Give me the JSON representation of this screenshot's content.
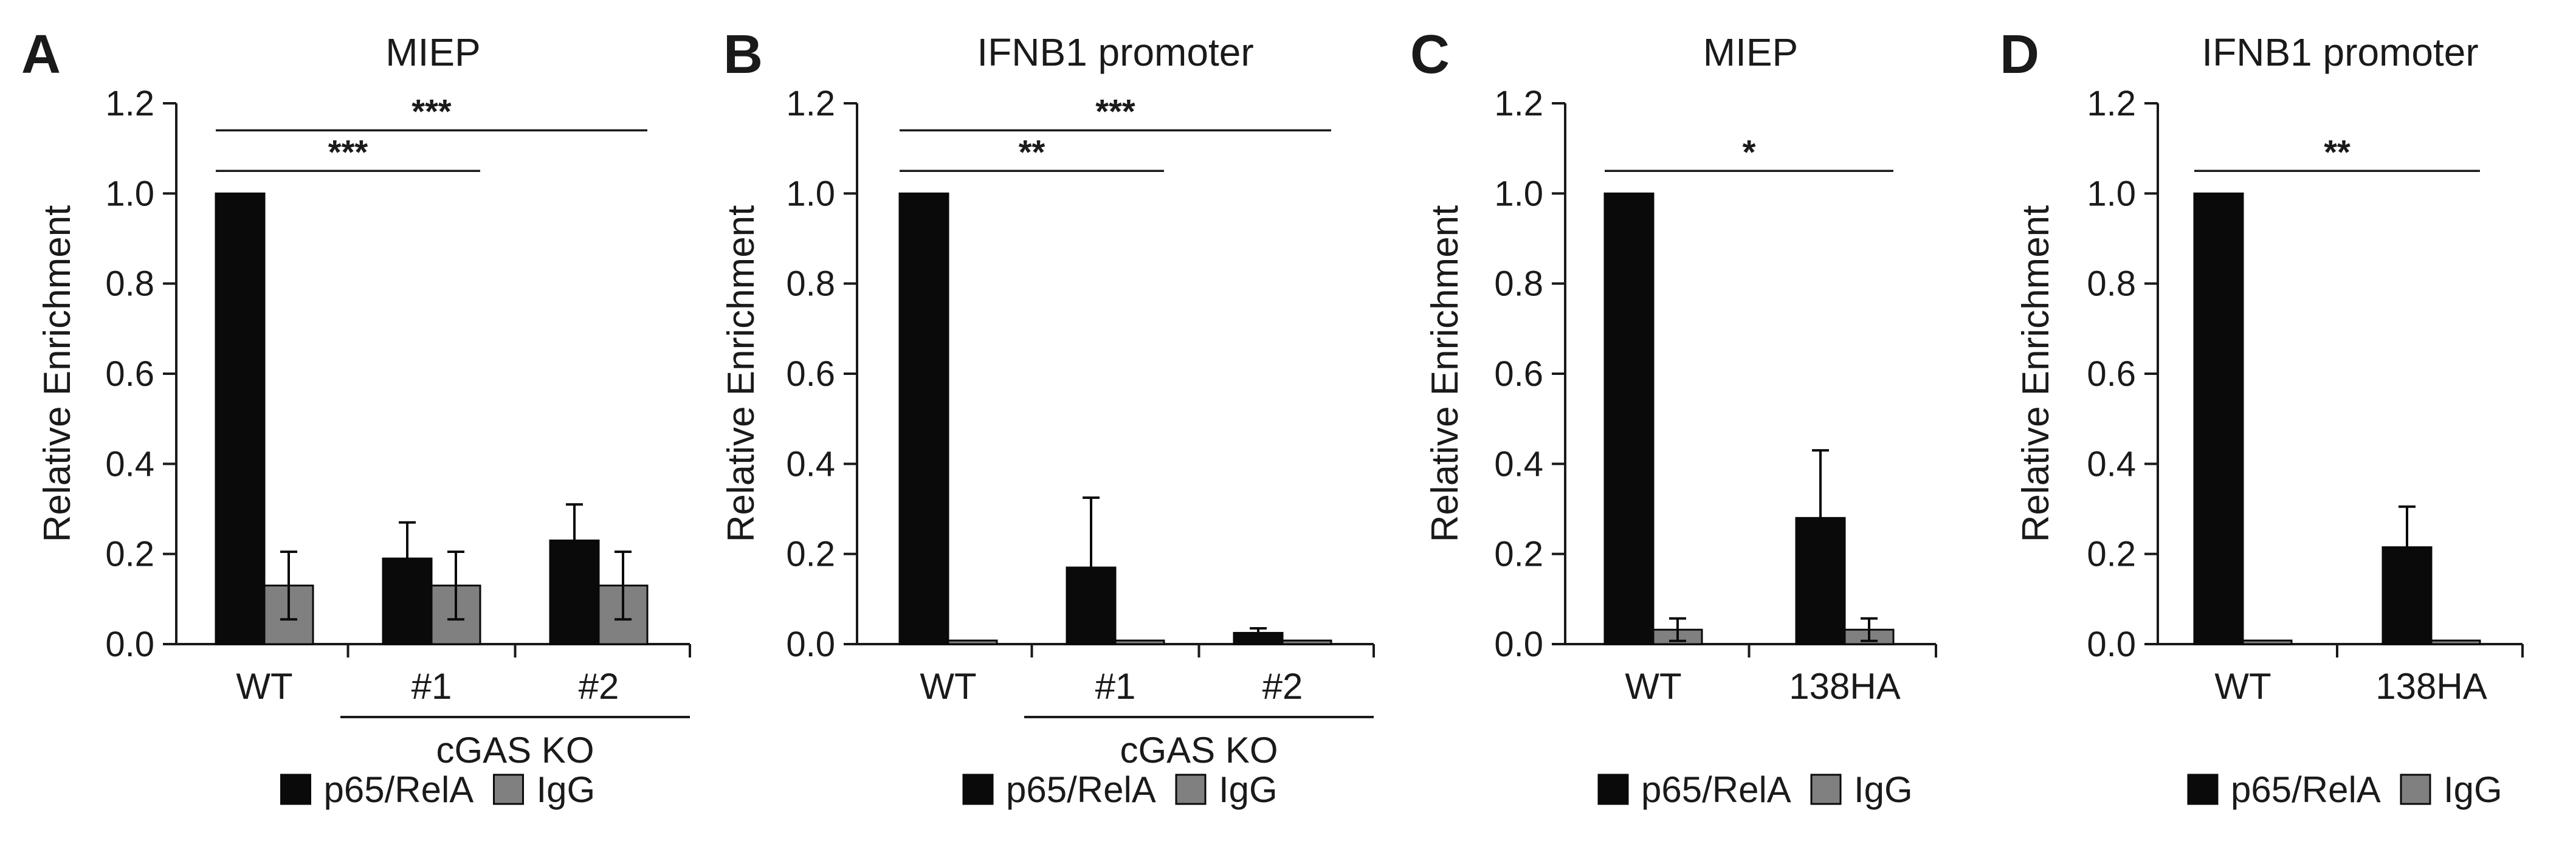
{
  "legend": {
    "series1": "p65/RelA",
    "series2": "IgG"
  },
  "colors": {
    "p65": "#0a0a0a",
    "igg": "#808080",
    "axis": "#1a1a1a"
  },
  "chart_data": [
    {
      "letter": "A",
      "type": "bar",
      "title": "MIEP",
      "categories": [
        "WT",
        "#1",
        "#2"
      ],
      "group_label": "cGAS KO",
      "ylabel": "Relative Enrichment",
      "ylim": [
        0,
        1.2
      ],
      "yticks": [
        "0.0",
        "0.2",
        "0.4",
        "0.6",
        "0.8",
        "1.0",
        "1.2"
      ],
      "series": [
        {
          "name": "p65/RelA",
          "values": [
            1.0,
            0.19,
            0.23
          ],
          "errors": [
            0,
            0.08,
            0.08
          ]
        },
        {
          "name": "IgG",
          "values": [
            0.13,
            0.13,
            0.13
          ],
          "errors": [
            0.075,
            0.075,
            0.075
          ]
        }
      ],
      "significance": [
        {
          "from": 0,
          "to": 1,
          "y": 1.05,
          "label": "***"
        },
        {
          "from": 0,
          "to": 2,
          "y": 1.14,
          "label": "***"
        }
      ]
    },
    {
      "letter": "B",
      "type": "bar",
      "title": "IFNB1 promoter",
      "categories": [
        "WT",
        "#1",
        "#2"
      ],
      "group_label": "cGAS KO",
      "ylabel": "Relative Enrichment",
      "ylim": [
        0,
        1.2
      ],
      "yticks": [
        "0.0",
        "0.2",
        "0.4",
        "0.6",
        "0.8",
        "1.0",
        "1.2"
      ],
      "series": [
        {
          "name": "p65/RelA",
          "values": [
            1.0,
            0.17,
            0.025
          ],
          "errors": [
            0,
            0.155,
            0.01
          ]
        },
        {
          "name": "IgG",
          "values": [
            0.008,
            0.008,
            0.008
          ],
          "errors": [
            0,
            0,
            0
          ]
        }
      ],
      "significance": [
        {
          "from": 0,
          "to": 1,
          "y": 1.05,
          "label": "**"
        },
        {
          "from": 0,
          "to": 2,
          "y": 1.14,
          "label": "***"
        }
      ]
    },
    {
      "letter": "C",
      "type": "bar",
      "title": "MIEP",
      "categories": [
        "WT",
        "138HA"
      ],
      "group_label": "",
      "ylabel": "Relative Enrichment",
      "ylim": [
        0,
        1.2
      ],
      "yticks": [
        "0.0",
        "0.2",
        "0.4",
        "0.6",
        "0.8",
        "1.0",
        "1.2"
      ],
      "series": [
        {
          "name": "p65/RelA",
          "values": [
            1.0,
            0.28
          ],
          "errors": [
            0,
            0.15
          ]
        },
        {
          "name": "IgG",
          "values": [
            0.032,
            0.032
          ],
          "errors": [
            0.025,
            0.025
          ]
        }
      ],
      "significance": [
        {
          "from": 0,
          "to": 1,
          "y": 1.05,
          "label": "*"
        }
      ]
    },
    {
      "letter": "D",
      "type": "bar",
      "title": "IFNB1 promoter",
      "categories": [
        "WT",
        "138HA"
      ],
      "group_label": "",
      "ylabel": "Relative Enrichment",
      "ylim": [
        0,
        1.2
      ],
      "yticks": [
        "0.0",
        "0.2",
        "0.4",
        "0.6",
        "0.8",
        "1.0",
        "1.2"
      ],
      "series": [
        {
          "name": "p65/RelA",
          "values": [
            1.0,
            0.215
          ],
          "errors": [
            0,
            0.09
          ]
        },
        {
          "name": "IgG",
          "values": [
            0.008,
            0.008
          ],
          "errors": [
            0,
            0
          ]
        }
      ],
      "significance": [
        {
          "from": 0,
          "to": 1,
          "y": 1.05,
          "label": "**"
        }
      ]
    }
  ]
}
